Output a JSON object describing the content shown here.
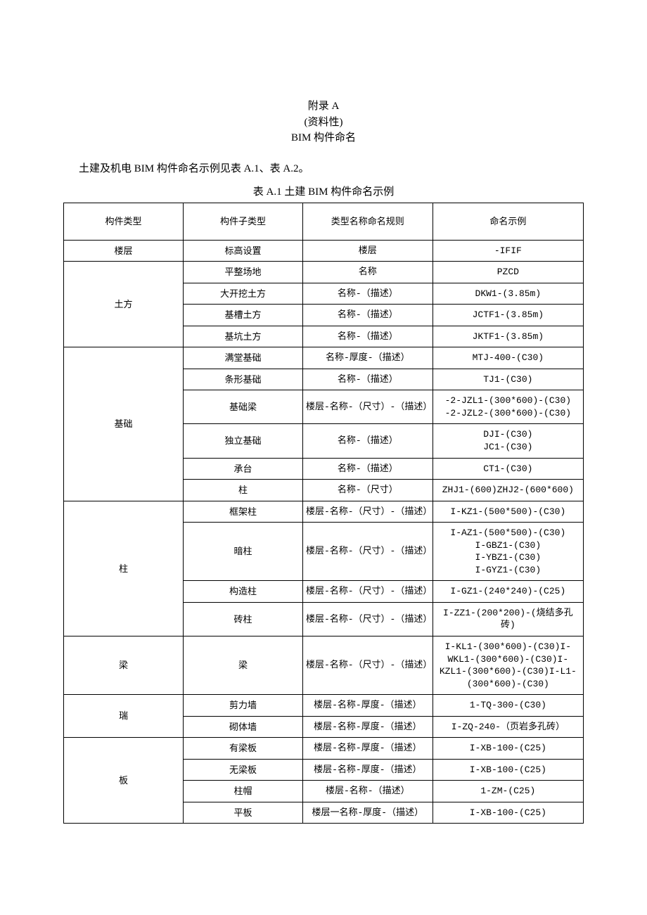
{
  "header": {
    "line1": "附录 A",
    "line2": "(资料性)",
    "line3": "BIM 构件命名"
  },
  "intro": "土建及机电 BIM 构件命名示例见表 A.1、表 A.2。",
  "table_caption": "表 A.1 土建 BIM 构件命名示例",
  "columns": {
    "c1": "构件类型",
    "c2": "构件子类型",
    "c3": "类型名称命名规则",
    "c4": "命名示例"
  },
  "groups": [
    {
      "type": "楼层",
      "rows": [
        {
          "sub": "标高设置",
          "rule": "楼层",
          "example": "-IFIF"
        }
      ]
    },
    {
      "type": "土方",
      "rows": [
        {
          "sub": "平整场地",
          "rule": "名称",
          "example": "PZCD"
        },
        {
          "sub": "大开挖土方",
          "rule": "名称-（描述）",
          "example": "DKW1-(3.85m)"
        },
        {
          "sub": "基槽土方",
          "rule": "名称-（描述）",
          "example": "JCTF1-(3.85m)"
        },
        {
          "sub": "基坑土方",
          "rule": "名称-（描述）",
          "example": "JKTF1-(3.85m)"
        }
      ]
    },
    {
      "type": "基础",
      "rows": [
        {
          "sub": "满堂基础",
          "rule": "名称-厚度-（描述）",
          "example": "MTJ-400-(C30)"
        },
        {
          "sub": "条形基础",
          "rule": "名称-（描述）",
          "example": "TJ1-(C30)"
        },
        {
          "sub": "基础梁",
          "rule": "楼层-名称-（尺寸）-（描述）",
          "example": "-2-JZL1-(300*600)-(C30)\n-2-JZL2-(300*600)-(C30)"
        },
        {
          "sub": "独立基础",
          "rule": "名称-（描述）",
          "example": "DJI-(C30)\nJC1-(C30)"
        },
        {
          "sub": "承台",
          "rule": "名称-（描述）",
          "example": "CT1-(C30)"
        },
        {
          "sub": "柱",
          "rule": "名称-（尺寸）",
          "example": "ZHJ1-(600)ZHJ2-(600*600)"
        }
      ]
    },
    {
      "type": "柱",
      "rows": [
        {
          "sub": "框架柱",
          "rule": "楼层-名称-（尺寸）-（描述）",
          "example": "I-KZ1-(500*500)-(C30)"
        },
        {
          "sub": "暗柱",
          "rule": "楼层-名称-（尺寸）-（描述）",
          "example": "I-AZ1-(500*500)-(C30)\nI-GBZ1-(C30)\nI-YBZ1-(C30)\nI-GYZ1-(C30)"
        },
        {
          "sub": "构造柱",
          "rule": "楼层-名称-（尺寸）-（描述）",
          "example": "I-GZ1-(240*240)-(C25)"
        },
        {
          "sub": "砖柱",
          "rule": "楼层-名称-（尺寸）-（描述）",
          "example": "I-ZZ1-(200*200)-(烧结多孔砖)"
        }
      ]
    },
    {
      "type": "梁",
      "rows": [
        {
          "sub": "梁",
          "rule": "楼层-名称-（尺寸）-（描述）",
          "example": "I-KL1-(300*600)-(C30)I-WKL1-(300*600)-(C30)I-KZL1-(300*600)-(C30)I-L1-(300*600)-(C30)"
        }
      ]
    },
    {
      "type": "瑞",
      "rows": [
        {
          "sub": "剪力墙",
          "rule": "楼层-名称-厚度-（描述）",
          "example": "1-TQ-300-(C30)"
        },
        {
          "sub": "砌体墙",
          "rule": "楼层-名称-厚度-（描述）",
          "example": "I-ZQ-240-（页岩多孔砖）"
        }
      ]
    },
    {
      "type": "板",
      "rows": [
        {
          "sub": "有梁板",
          "rule": "楼层-名称-厚度-（描述）",
          "example": "I-XB-100-(C25)"
        },
        {
          "sub": "无梁板",
          "rule": "楼层-名称-厚度-（描述）",
          "example": "I-XB-100-(C25)"
        },
        {
          "sub": "柱帽",
          "rule": "楼层-名称-（描述）",
          "example": "1-ZM-(C25)"
        },
        {
          "sub": "平板",
          "rule": "楼层一名称-厚度-（描述）",
          "example": "I-XB-100-(C25)"
        }
      ]
    }
  ]
}
